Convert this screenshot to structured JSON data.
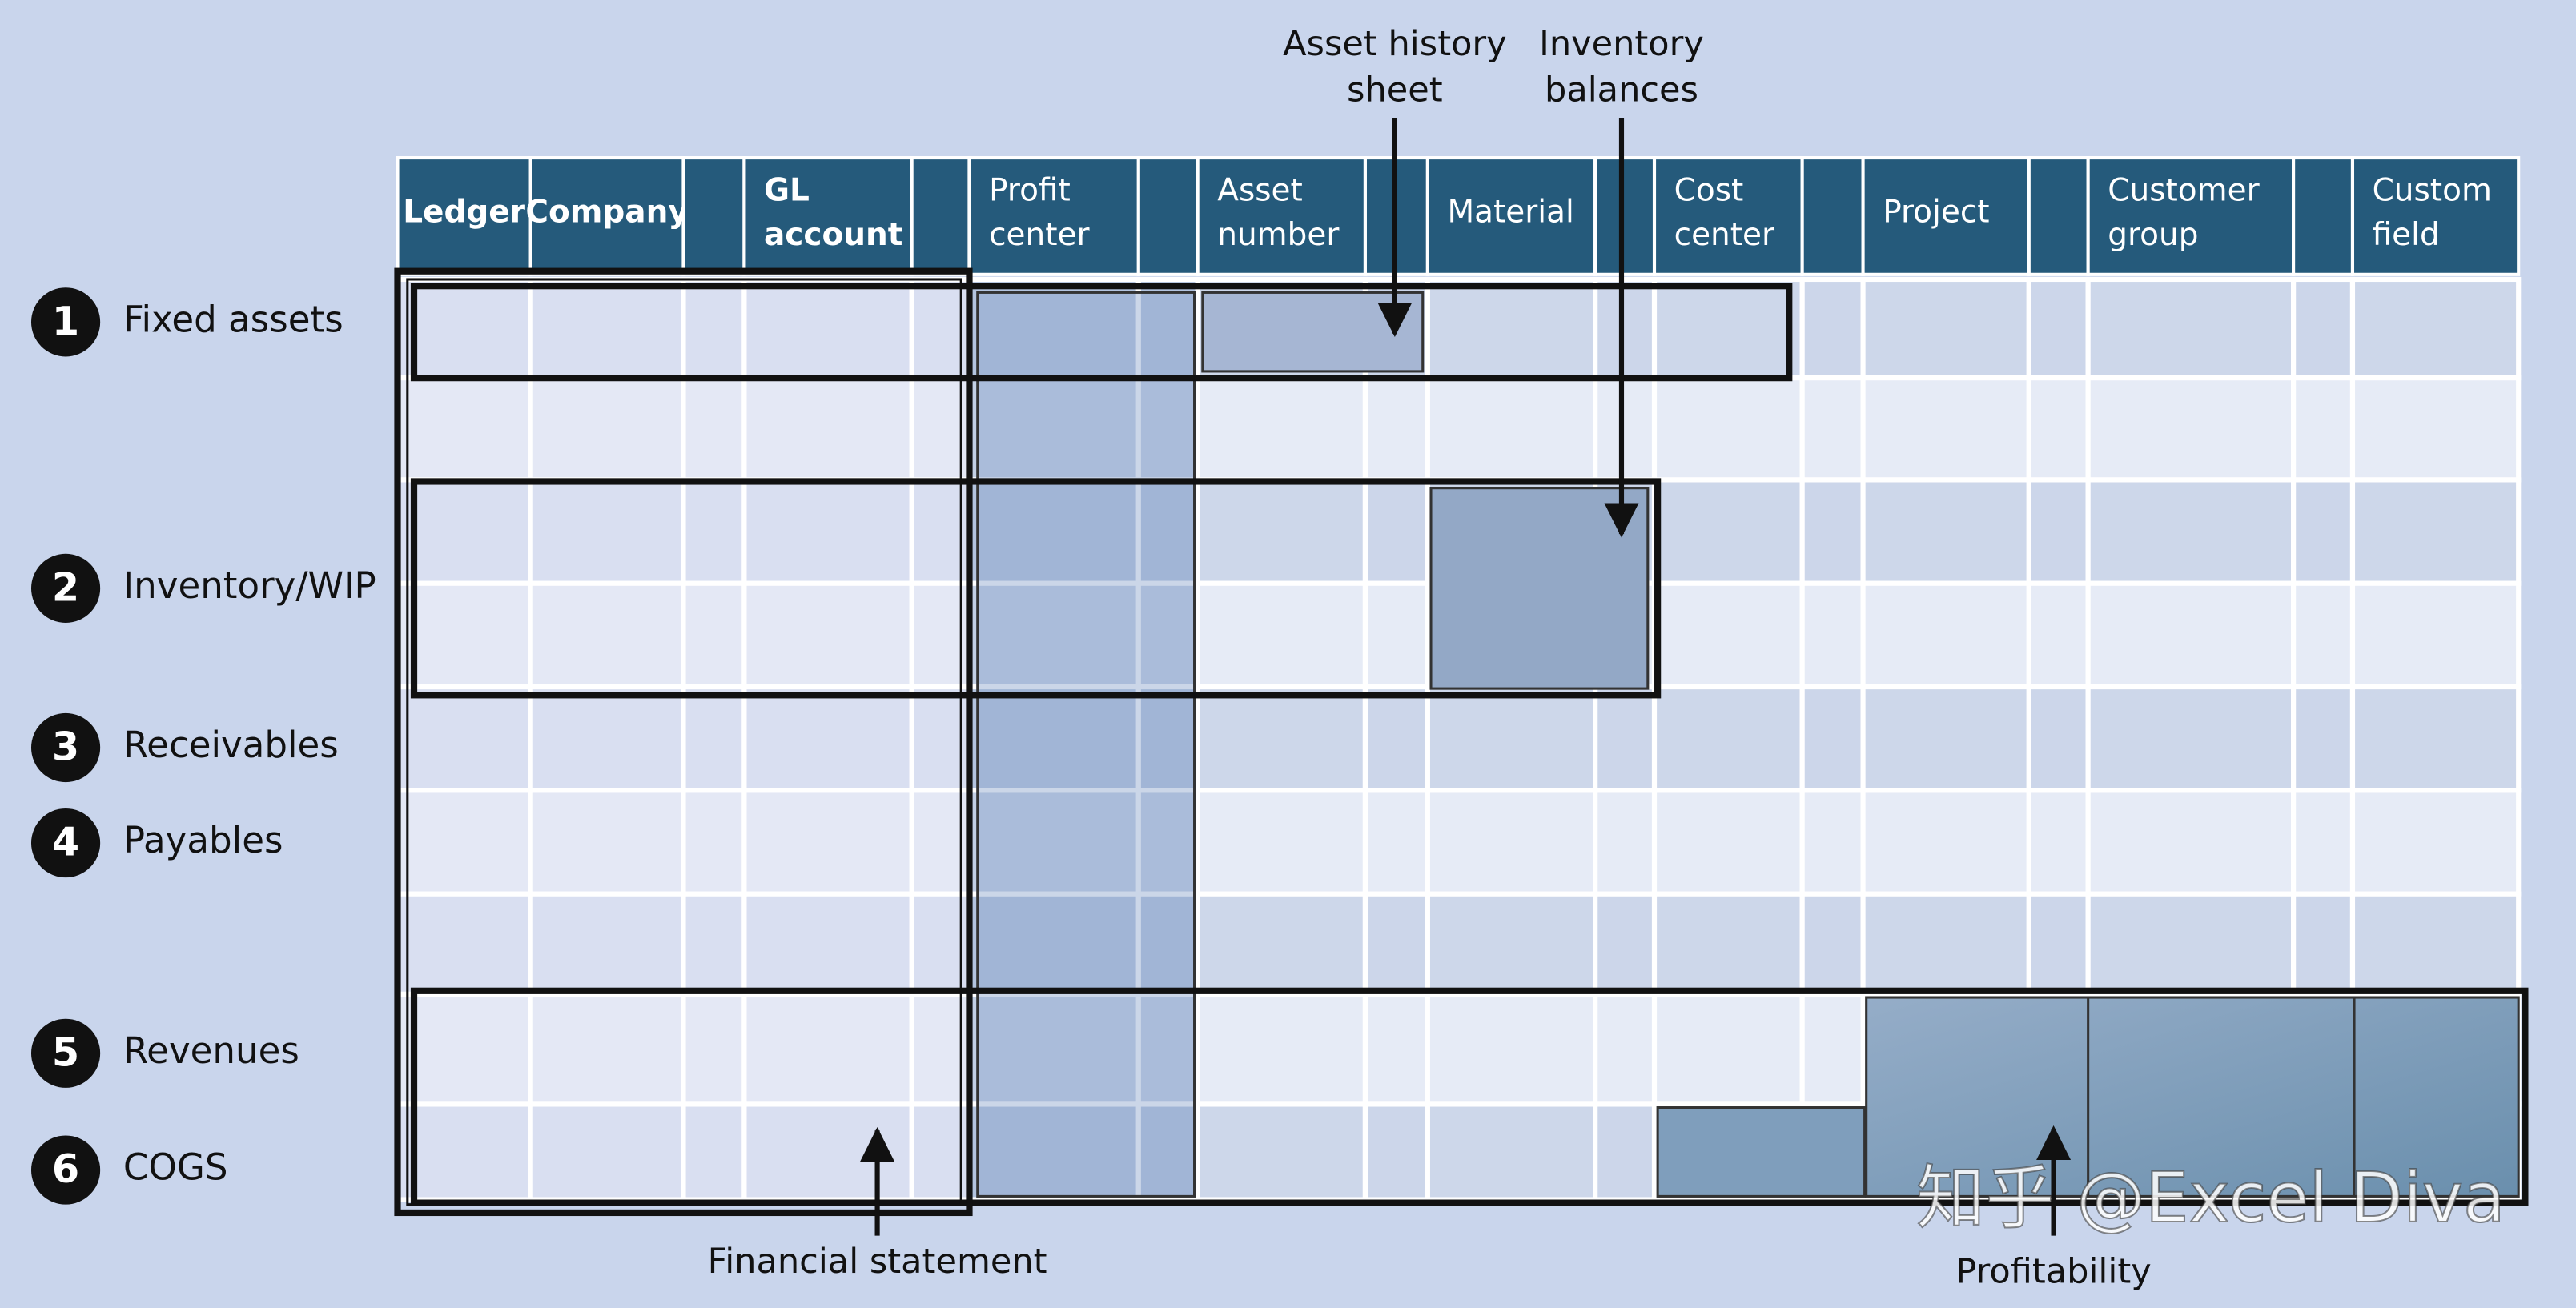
{
  "header": {
    "columns": [
      [
        "Ledger"
      ],
      [
        "Company"
      ],
      [
        "GL",
        "account"
      ],
      [
        "Profit",
        "center"
      ],
      [
        "Asset",
        "number"
      ],
      [
        "Material"
      ],
      [
        "Cost",
        "center"
      ],
      [
        "Project"
      ],
      [
        "Customer",
        "group"
      ],
      [
        "Custom",
        "field"
      ]
    ]
  },
  "rows": [
    {
      "number": "1",
      "label": "Fixed assets"
    },
    {
      "number": "2",
      "label": "Inventory/WIP"
    },
    {
      "number": "3",
      "label": "Receivables"
    },
    {
      "number": "4",
      "label": "Payables"
    },
    {
      "number": "5",
      "label": "Revenues"
    },
    {
      "number": "6",
      "label": "COGS"
    }
  ],
  "annotations": {
    "asset_history": [
      "Asset history",
      "sheet"
    ],
    "inventory_balances": [
      "Inventory",
      "balances"
    ],
    "financial_statement": "Financial statement",
    "profitability": "Profitability"
  },
  "watermark": "知乎 @Excel Diva"
}
